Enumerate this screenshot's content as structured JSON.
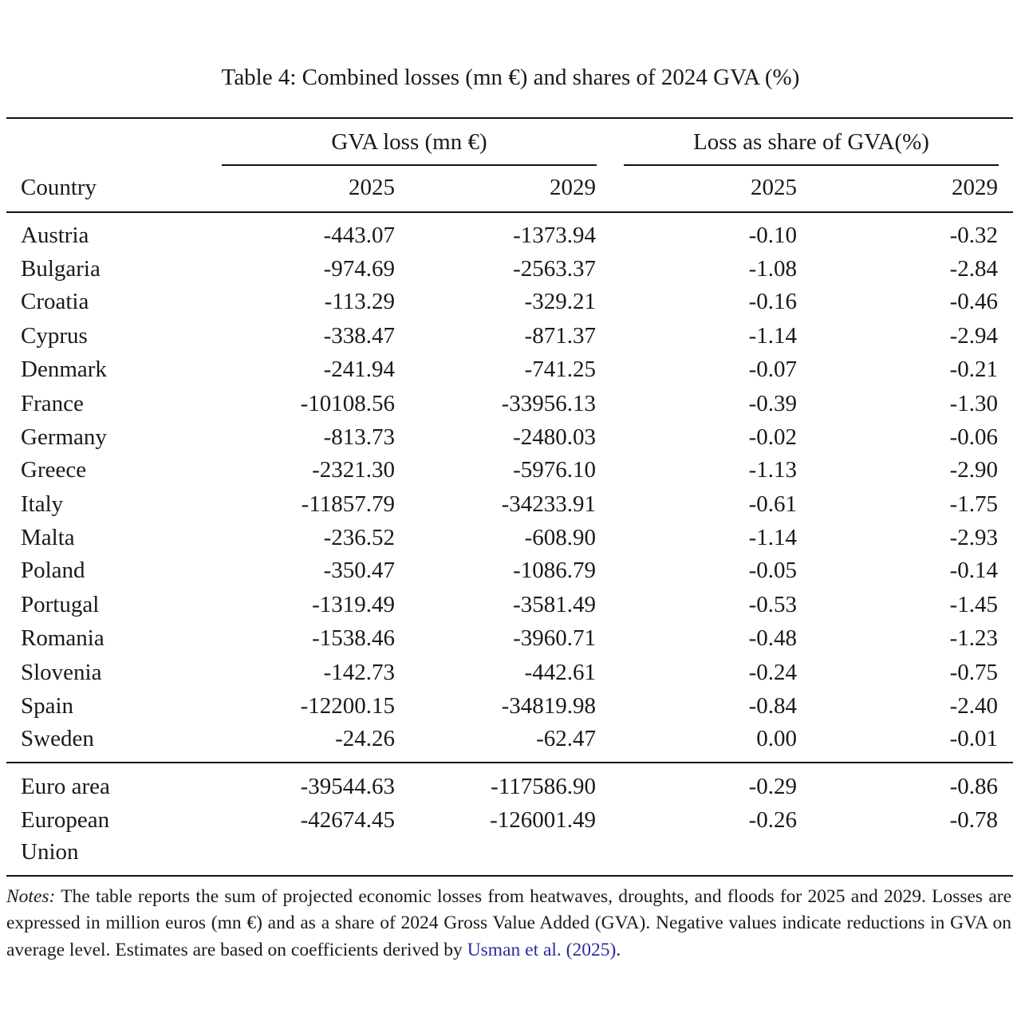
{
  "title": "Table 4: Combined losses (mn €) and shares of 2024 GVA (%)",
  "table": {
    "groups": [
      "GVA loss (mn €)",
      "Loss as share of GVA(%)"
    ],
    "columns": [
      "Country",
      "2025",
      "2029",
      "2025",
      "2029"
    ],
    "rows": [
      [
        "Austria",
        "-443.07",
        "-1373.94",
        "-0.10",
        "-0.32"
      ],
      [
        "Bulgaria",
        "-974.69",
        "-2563.37",
        "-1.08",
        "-2.84"
      ],
      [
        "Croatia",
        "-113.29",
        "-329.21",
        "-0.16",
        "-0.46"
      ],
      [
        "Cyprus",
        "-338.47",
        "-871.37",
        "-1.14",
        "-2.94"
      ],
      [
        "Denmark",
        "-241.94",
        "-741.25",
        "-0.07",
        "-0.21"
      ],
      [
        "France",
        "-10108.56",
        "-33956.13",
        "-0.39",
        "-1.30"
      ],
      [
        "Germany",
        "-813.73",
        "-2480.03",
        "-0.02",
        "-0.06"
      ],
      [
        "Greece",
        "-2321.30",
        "-5976.10",
        "-1.13",
        "-2.90"
      ],
      [
        "Italy",
        "-11857.79",
        "-34233.91",
        "-0.61",
        "-1.75"
      ],
      [
        "Malta",
        "-236.52",
        "-608.90",
        "-1.14",
        "-2.93"
      ],
      [
        "Poland",
        "-350.47",
        "-1086.79",
        "-0.05",
        "-0.14"
      ],
      [
        "Portugal",
        "-1319.49",
        "-3581.49",
        "-0.53",
        "-1.45"
      ],
      [
        "Romania",
        "-1538.46",
        "-3960.71",
        "-0.48",
        "-1.23"
      ],
      [
        "Slovenia",
        "-142.73",
        "-442.61",
        "-0.24",
        "-0.75"
      ],
      [
        "Spain",
        "-12200.15",
        "-34819.98",
        "-0.84",
        "-2.40"
      ],
      [
        "Sweden",
        "-24.26",
        "-62.47",
        "0.00",
        "-0.01"
      ]
    ],
    "aggregates": [
      [
        "Euro area",
        "-39544.63",
        "-117586.90",
        "-0.29",
        "-0.86"
      ],
      [
        "European Union",
        "-42674.45",
        "-126001.49",
        "-0.26",
        "-0.78"
      ]
    ]
  },
  "notes": {
    "label": "Notes:",
    "text": "The table reports the sum of projected economic losses from heatwaves, droughts, and floods for 2025 and 2029. Losses are expressed in million euros (mn €) and as a share of 2024 Gross Value Added (GVA). Negative values indicate reductions in GVA on average level. Estimates are based on coefficients derived by",
    "citation": "Usman et al. (2025)",
    "end": "."
  }
}
